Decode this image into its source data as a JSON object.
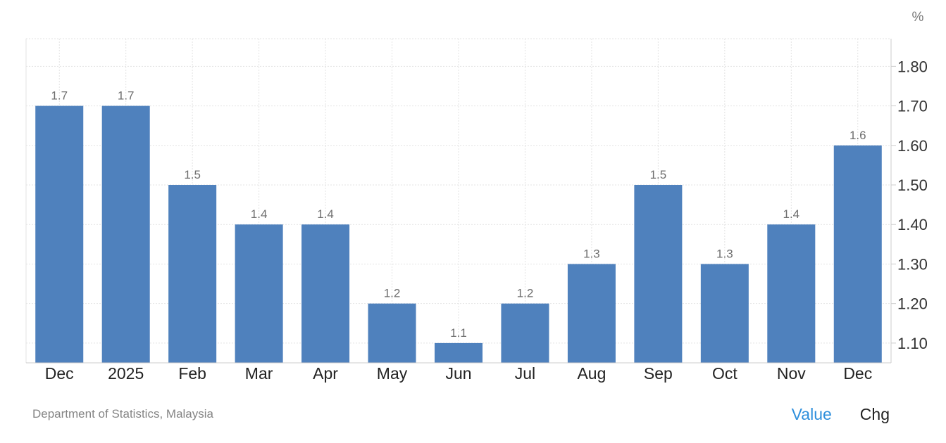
{
  "chart_data": {
    "type": "bar",
    "unit_label": "%",
    "categories": [
      "Dec",
      "2025",
      "Feb",
      "Mar",
      "Apr",
      "May",
      "Jun",
      "Jul",
      "Aug",
      "Sep",
      "Oct",
      "Nov",
      "Dec"
    ],
    "values": [
      1.7,
      1.7,
      1.5,
      1.4,
      1.4,
      1.2,
      1.1,
      1.2,
      1.3,
      1.5,
      1.3,
      1.4,
      1.6
    ],
    "value_labels": [
      "1.7",
      "1.7",
      "1.5",
      "1.4",
      "1.4",
      "1.2",
      "1.1",
      "1.2",
      "1.3",
      "1.5",
      "1.3",
      "1.4",
      "1.6"
    ],
    "y_ticks": [
      1.1,
      1.2,
      1.3,
      1.4,
      1.5,
      1.6,
      1.7,
      1.8
    ],
    "y_tick_labels": [
      "1.10",
      "1.20",
      "1.30",
      "1.40",
      "1.50",
      "1.60",
      "1.70",
      "1.80"
    ],
    "ylim": [
      1.05,
      1.87
    ],
    "y_axis_side": "right",
    "grid": true,
    "bar_color": "#4f81bd"
  },
  "footer": {
    "source": "Department of Statistics, Malaysia",
    "tabs": {
      "value": "Value",
      "chg": "Chg"
    }
  }
}
